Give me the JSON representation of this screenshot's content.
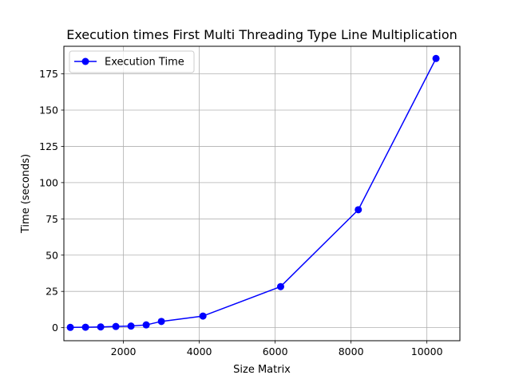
{
  "chart_data": {
    "type": "line",
    "title": "Execution times First Multi Threading Type Line Multiplication",
    "xlabel": "Size Matrix",
    "ylabel": "Time (seconds)",
    "xlim": [
      430,
      10870
    ],
    "ylim": [
      -9,
      194
    ],
    "xticks": [
      2000,
      4000,
      6000,
      8000,
      10000
    ],
    "yticks": [
      0,
      25,
      50,
      75,
      100,
      125,
      150,
      175
    ],
    "grid": true,
    "legend_position": "top-left",
    "color": "#0000ff",
    "series": [
      {
        "name": "Execution Time",
        "x": [
          600,
          1000,
          1400,
          1800,
          2200,
          2600,
          3000,
          4096,
          6144,
          8192,
          10240
        ],
        "y": [
          0.2,
          0.3,
          0.5,
          0.8,
          1.1,
          1.9,
          4.3,
          8.0,
          28.3,
          81.3,
          185.6
        ]
      }
    ]
  }
}
